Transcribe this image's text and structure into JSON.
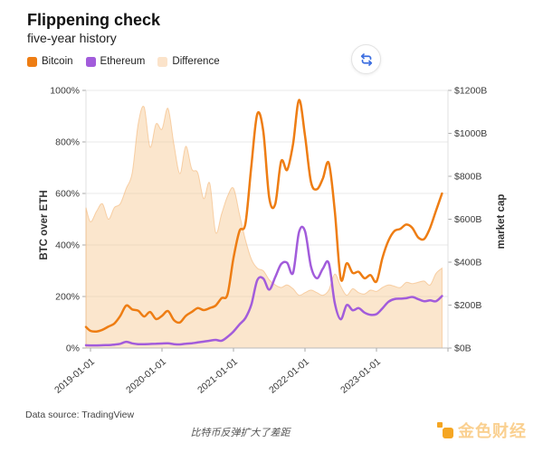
{
  "header": {
    "title": "Flippening check",
    "subtitle": "five-year history"
  },
  "legend": {
    "items": [
      {
        "label": "Bitcoin",
        "color": "#EE7D13"
      },
      {
        "label": "Ethereum",
        "color": "#A25CDB"
      },
      {
        "label": "Difference",
        "color": "#FBE3CA"
      }
    ]
  },
  "toolbar": {
    "refresh_icon_color": "#3D6FE0"
  },
  "chart_data": {
    "type": "area",
    "subtype": "two market-cap lines (right axis) + ratio area (left axis)",
    "x_start": "2018-12",
    "x_end": "2023-12",
    "x_interval": "month",
    "x_tick_labels": [
      "2019-01-01",
      "2020-01-01",
      "2021-01-01",
      "2022-01-01",
      "2023-01-01"
    ],
    "grid": "horizontal-only",
    "left_axis": {
      "label": "BTC over ETH",
      "unit": "%",
      "min": 0,
      "max": 1000,
      "tick_values": [
        0,
        200,
        400,
        600,
        800,
        1000
      ],
      "tick_labels": [
        "0%",
        "200%",
        "400%",
        "600%",
        "800%",
        "1000%"
      ]
    },
    "right_axis": {
      "label": "market cap",
      "unit": "$B",
      "min": 0,
      "max": 1200,
      "tick_values": [
        0,
        200,
        400,
        600,
        800,
        1000,
        1200
      ],
      "tick_labels": [
        "$0B",
        "$200B",
        "$400B",
        "$600B",
        "$800B",
        "$1000B",
        "$1200B"
      ]
    },
    "series": [
      {
        "name": "Bitcoin",
        "type": "line",
        "axis": "right",
        "color": "#EE7D13",
        "width": 2.5,
        "values": [
          98,
          80,
          77,
          85,
          100,
          114,
          150,
          198,
          180,
          174,
          147,
          168,
          135,
          150,
          172,
          130,
          119,
          150,
          168,
          186,
          177,
          186,
          198,
          232,
          250,
          420,
          545,
          580,
          850,
          1090,
          1010,
          700,
          670,
          870,
          830,
          950,
          1155,
          990,
          774,
          740,
          790,
          862,
          640,
          322,
          395,
          350,
          355,
          325,
          340,
          310,
          420,
          500,
          545,
          555,
          575,
          560,
          515,
          508,
          560,
          640,
          720
        ]
      },
      {
        "name": "Ethereum",
        "type": "line",
        "axis": "right",
        "color": "#A25CDB",
        "width": 2.5,
        "values": [
          13,
          12,
          12,
          13,
          14,
          16,
          20,
          29,
          22,
          18,
          18,
          19,
          20,
          21,
          22,
          18,
          17,
          20,
          22,
          26,
          30,
          34,
          38,
          34,
          52,
          77,
          110,
          140,
          203,
          316,
          324,
          272,
          330,
          391,
          397,
          350,
          540,
          545,
          380,
          325,
          370,
          395,
          210,
          134,
          200,
          176,
          186,
          165,
          155,
          158,
          185,
          215,
          228,
          230,
          232,
          238,
          228,
          218,
          222,
          218,
          242
        ]
      },
      {
        "name": "Difference",
        "type": "area",
        "axis": "left",
        "color": "#F7C791",
        "fill_opacity": 0.45,
        "edge_color": "rgba(243,176,110,0.55)",
        "values": [
          545,
          490,
          530,
          560,
          500,
          545,
          560,
          620,
          680,
          870,
          935,
          780,
          870,
          850,
          930,
          790,
          677,
          783,
          695,
          680,
          580,
          640,
          449,
          520,
          589,
          620,
          520,
          420,
          345,
          310,
          300,
          265,
          245,
          235,
          245,
          230,
          205,
          215,
          225,
          215,
          205,
          225,
          287,
          240,
          205,
          230,
          215,
          210,
          225,
          220,
          235,
          245,
          240,
          235,
          255,
          250,
          255,
          260,
          245,
          290,
          310
        ]
      }
    ]
  },
  "footer": {
    "source": "Data source: TradingView",
    "watermark": "比特币反弹扩大了差距",
    "brand": "金色财经",
    "brand_color": "#F5A623"
  }
}
